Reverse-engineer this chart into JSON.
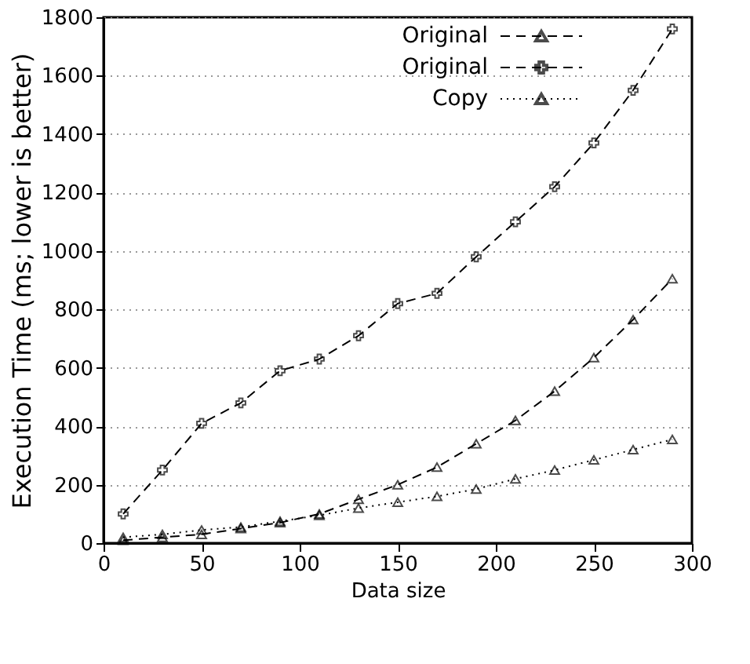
{
  "chart_data": {
    "type": "line",
    "xlabel": "Data size",
    "ylabel": "Execution Time (ms; lower is better)",
    "x": [
      10,
      30,
      50,
      70,
      90,
      110,
      130,
      150,
      170,
      190,
      210,
      230,
      250,
      270,
      290
    ],
    "series": [
      {
        "name": "Original",
        "color": "#000000",
        "marker": "triangle",
        "line_style": "dashed",
        "values": [
          10,
          20,
          30,
          50,
          70,
          100,
          150,
          200,
          260,
          340,
          420,
          520,
          635,
          765,
          905
        ]
      },
      {
        "name": "Original",
        "color": "#000000",
        "marker": "cross",
        "line_style": "dashed",
        "values": [
          100,
          250,
          410,
          480,
          590,
          630,
          710,
          820,
          855,
          980,
          1100,
          1220,
          1370,
          1550,
          1760
        ]
      },
      {
        "name": "Copy",
        "color": "#000000",
        "marker": "triangle",
        "line_style": "dotted",
        "values": [
          20,
          30,
          45,
          55,
          75,
          95,
          120,
          140,
          160,
          185,
          220,
          250,
          285,
          320,
          355
        ]
      }
    ],
    "xlim": [
      0,
      300
    ],
    "xticks": [
      0,
      50,
      100,
      150,
      200,
      250,
      300
    ],
    "ylim": [
      0,
      1800
    ],
    "yticks": [
      0,
      200,
      400,
      600,
      800,
      1000,
      1200,
      1400,
      1600,
      1800
    ],
    "grid": "y",
    "legend": "top right"
  }
}
